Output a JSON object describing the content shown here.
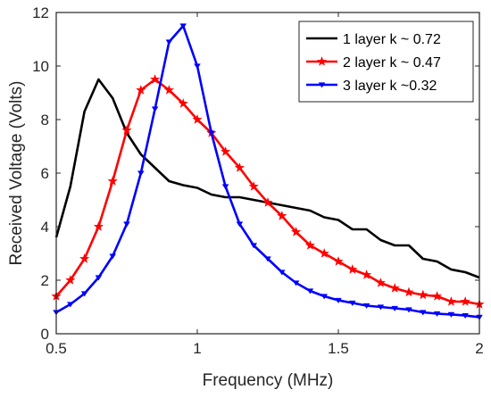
{
  "chart_data": {
    "type": "line",
    "title": "",
    "xlabel": "Frequency (MHz)",
    "ylabel": "Received Voltage (Volts)",
    "xlim": [
      0.5,
      2
    ],
    "ylim": [
      0,
      12
    ],
    "xticks": [
      0.5,
      1,
      1.5,
      2
    ],
    "xtick_labels": [
      "0.5",
      "1",
      "1.5",
      "2"
    ],
    "yticks": [
      0,
      2,
      4,
      6,
      8,
      10,
      12
    ],
    "ytick_labels": [
      "0",
      "2",
      "4",
      "6",
      "8",
      "10",
      "12"
    ],
    "grid": false,
    "legend_position": "top-right",
    "series": [
      {
        "name": "1 layer k ~ 0.72",
        "color": "#000000",
        "marker": "none",
        "x": [
          0.5,
          0.55,
          0.6,
          0.65,
          0.7,
          0.75,
          0.8,
          0.85,
          0.9,
          0.95,
          1.0,
          1.05,
          1.1,
          1.15,
          1.2,
          1.25,
          1.3,
          1.35,
          1.4,
          1.45,
          1.5,
          1.55,
          1.6,
          1.65,
          1.7,
          1.75,
          1.8,
          1.85,
          1.9,
          1.95,
          2.0
        ],
        "y": [
          3.6,
          5.5,
          8.3,
          9.5,
          8.8,
          7.5,
          6.7,
          6.2,
          5.7,
          5.55,
          5.45,
          5.2,
          5.1,
          5.1,
          5.0,
          4.9,
          4.8,
          4.7,
          4.6,
          4.35,
          4.25,
          3.9,
          3.9,
          3.5,
          3.3,
          3.3,
          2.8,
          2.7,
          2.4,
          2.3,
          2.1
        ]
      },
      {
        "name": "2 layer k ~ 0.47",
        "color": "#ff0000",
        "marker": "star",
        "x": [
          0.5,
          0.55,
          0.6,
          0.65,
          0.7,
          0.75,
          0.8,
          0.85,
          0.9,
          0.95,
          1.0,
          1.05,
          1.1,
          1.15,
          1.2,
          1.25,
          1.3,
          1.35,
          1.4,
          1.45,
          1.5,
          1.55,
          1.6,
          1.65,
          1.7,
          1.75,
          1.8,
          1.85,
          1.9,
          1.95,
          2.0
        ],
        "y": [
          1.4,
          2.0,
          2.8,
          4.0,
          5.7,
          7.6,
          9.1,
          9.5,
          9.1,
          8.6,
          8.0,
          7.5,
          6.8,
          6.2,
          5.5,
          4.9,
          4.4,
          3.8,
          3.3,
          3.0,
          2.7,
          2.4,
          2.2,
          1.9,
          1.7,
          1.55,
          1.45,
          1.4,
          1.2,
          1.2,
          1.1
        ]
      },
      {
        "name": "3 layer k ~0.32",
        "color": "#0000ff",
        "marker": "triangle-down",
        "x": [
          0.5,
          0.55,
          0.6,
          0.65,
          0.7,
          0.75,
          0.8,
          0.85,
          0.9,
          0.95,
          1.0,
          1.05,
          1.1,
          1.15,
          1.2,
          1.25,
          1.3,
          1.35,
          1.4,
          1.45,
          1.5,
          1.55,
          1.6,
          1.65,
          1.7,
          1.75,
          1.8,
          1.85,
          1.9,
          1.95,
          2.0
        ],
        "y": [
          0.8,
          1.1,
          1.5,
          2.1,
          2.9,
          4.1,
          6.0,
          8.4,
          10.9,
          11.5,
          10.0,
          7.5,
          5.5,
          4.1,
          3.3,
          2.8,
          2.3,
          1.9,
          1.6,
          1.4,
          1.25,
          1.15,
          1.05,
          1.0,
          0.95,
          0.9,
          0.8,
          0.75,
          0.72,
          0.68,
          0.62
        ]
      }
    ]
  }
}
